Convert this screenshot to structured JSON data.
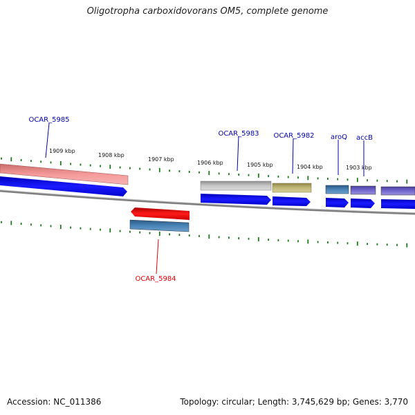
{
  "title": "Oligotropha carboxidovorans OM5, complete genome",
  "footer": {
    "accession": "Accession: NC_011386",
    "topology": "Topology: circular; Length: 3,745,629 bp; Genes: 3,770"
  },
  "ticks": [
    "1909 kbp",
    "1908 kbp",
    "1907 kbp",
    "1906 kbp",
    "1905 kbp",
    "1904 kbp",
    "1903 kbp"
  ],
  "genes": [
    {
      "name": "OCAR_5985",
      "color": "#0000aa"
    },
    {
      "name": "OCAR_5983",
      "color": "#0000aa"
    },
    {
      "name": "OCAR_5982",
      "color": "#0000aa"
    },
    {
      "name": "aroQ",
      "color": "#0000aa"
    },
    {
      "name": "accB",
      "color": "#0000aa"
    },
    {
      "name": "OCAR_5984",
      "color": "#dd0000"
    }
  ],
  "colors": {
    "backbone": "#808080",
    "tick": "#1a7a1a",
    "forward_cds": "#0000ee",
    "reverse_cds": "#ee0000"
  }
}
